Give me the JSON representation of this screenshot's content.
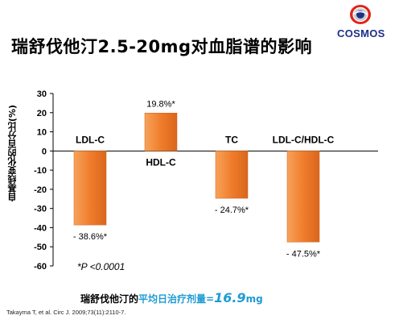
{
  "title": "瑞舒伐他汀2.5-20mg对血脂谱的影响",
  "logo": {
    "text": "COSMOS",
    "colors": {
      "red": "#e2231a",
      "blue": "#1d2f87",
      "grey": "#c9cbcf"
    }
  },
  "chart_data": {
    "type": "bar",
    "ylabel": "自基线变化的百分比(%)",
    "ylim": [
      -60,
      30
    ],
    "yticks": [
      "30",
      "20",
      "10",
      "0",
      "-10",
      "-20",
      "-30",
      "-40",
      "-50",
      "-60"
    ],
    "categories": [
      "LDL-C",
      "HDL-C",
      "TC",
      "LDL-C/HDL-C"
    ],
    "values": [
      -38.6,
      19.8,
      -24.7,
      -47.5
    ],
    "value_labels": [
      "- 38.6%*",
      "19.8%*",
      "- 24.7%*",
      "- 47.5%*"
    ],
    "bar_color": "#f07d2c"
  },
  "note": "*P <0.0001",
  "footer": {
    "prefix": "瑞舒伐他汀的",
    "highlight": "平均日治疗剂量=",
    "dose": "16.9",
    "unit": "mg"
  },
  "reference": "Takayma T, et al. Circ J. 2009;73(11):2110-7."
}
